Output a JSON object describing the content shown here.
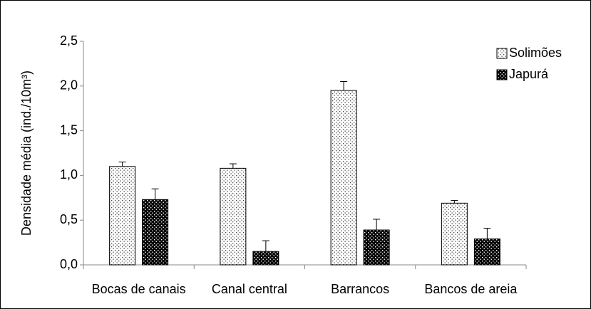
{
  "chart_data": {
    "type": "bar",
    "y_label": "Densidade média (ind./10m³)",
    "categories": [
      "Bocas de canais",
      "Canal central",
      "Barrancos",
      "Bancos de areia"
    ],
    "series": [
      {
        "name": "Solimões",
        "color": "#ffffff",
        "values": [
          1.1,
          1.08,
          1.95,
          0.69
        ],
        "errors": [
          0.05,
          0.05,
          0.1,
          0.03
        ]
      },
      {
        "name": "Japurá",
        "color": "#000000",
        "values": [
          0.73,
          0.15,
          0.39,
          0.29
        ],
        "errors": [
          0.12,
          0.12,
          0.12,
          0.12
        ]
      }
    ],
    "ylim": [
      0,
      2.5
    ],
    "yticks": [
      {
        "value": 0,
        "label": "0,0"
      },
      {
        "value": 0.5,
        "label": "0,5"
      },
      {
        "value": 1,
        "label": "1,0"
      },
      {
        "value": 1.5,
        "label": "1,5"
      },
      {
        "value": 2,
        "label": "2,0"
      },
      {
        "value": 2.5,
        "label": "2,5"
      }
    ],
    "legend": "top-right"
  }
}
